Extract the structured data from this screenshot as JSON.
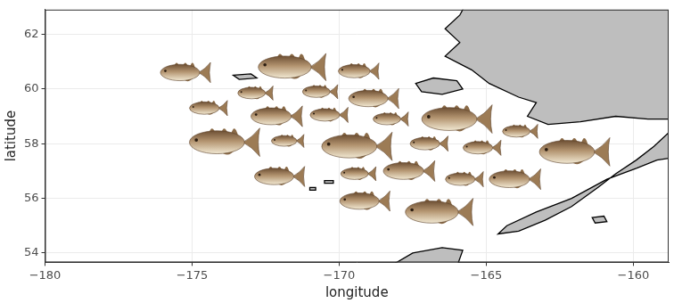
{
  "chart_data": {
    "type": "scatter",
    "x_label": "longitude",
    "y_label": "latitude",
    "marker": "fish",
    "x": [
      -175.3,
      -171.7,
      -169.4,
      -172.9,
      -170.7,
      -168.9,
      -174.5,
      -172.2,
      -170.4,
      -168.3,
      -166.1,
      -174.0,
      -171.8,
      -169.5,
      -167.0,
      -165.2,
      -163.9,
      -162.1,
      -172.1,
      -169.4,
      -167.7,
      -165.8,
      -164.1,
      -169.2,
      -166.7
    ],
    "values": [
      60.6,
      60.8,
      60.65,
      59.85,
      59.9,
      59.65,
      59.3,
      59.0,
      59.05,
      58.9,
      58.9,
      58.05,
      58.1,
      57.9,
      58.0,
      57.85,
      58.45,
      57.7,
      56.8,
      56.9,
      57.0,
      56.7,
      56.7,
      55.9,
      55.5
    ],
    "sizes": [
      1.85,
      2.5,
      1.5,
      1.3,
      1.3,
      1.85,
      1.4,
      1.9,
      1.4,
      1.3,
      2.6,
      2.6,
      1.2,
      2.6,
      1.4,
      1.4,
      1.3,
      2.6,
      1.85,
      1.3,
      1.9,
      1.4,
      1.9,
      1.85,
      2.5
    ],
    "land": [
      [
        [
          -165.8,
          63.5
        ],
        [
          -165.8,
          62.9
        ],
        [
          -165.9,
          62.7
        ],
        [
          -166.4,
          62.2
        ],
        [
          -165.9,
          61.7
        ],
        [
          -166.4,
          61.2
        ],
        [
          -165.5,
          60.7
        ],
        [
          -164.9,
          60.2
        ],
        [
          -163.9,
          59.7
        ],
        [
          -163.3,
          59.5
        ],
        [
          -163.6,
          59.0
        ],
        [
          -162.9,
          58.7
        ],
        [
          -161.8,
          58.8
        ],
        [
          -160.6,
          59.0
        ],
        [
          -159.5,
          58.9
        ],
        [
          -158.0,
          58.9
        ],
        [
          -158.0,
          63.5
        ]
      ],
      [
        [
          -158.0,
          58.4
        ],
        [
          -158.8,
          58.4
        ],
        [
          -159.3,
          57.9
        ],
        [
          -159.9,
          57.4
        ],
        [
          -160.6,
          56.9
        ],
        [
          -161.2,
          56.4
        ],
        [
          -162.1,
          55.7
        ],
        [
          -163.0,
          55.2
        ],
        [
          -163.9,
          54.8
        ],
        [
          -164.6,
          54.7
        ],
        [
          -164.3,
          55.0
        ],
        [
          -163.3,
          55.5
        ],
        [
          -162.1,
          56.0
        ],
        [
          -160.9,
          56.7
        ],
        [
          -159.9,
          57.1
        ],
        [
          -159.2,
          57.4
        ],
        [
          -158.0,
          57.6
        ]
      ],
      [
        [
          -167.4,
          60.2
        ],
        [
          -166.8,
          60.4
        ],
        [
          -166.0,
          60.3
        ],
        [
          -165.8,
          60.0
        ],
        [
          -166.5,
          59.8
        ],
        [
          -167.2,
          59.9
        ]
      ],
      [
        [
          -173.6,
          60.5
        ],
        [
          -173.0,
          60.55
        ],
        [
          -172.8,
          60.4
        ],
        [
          -173.4,
          60.35
        ]
      ],
      [
        [
          -170.5,
          56.65
        ],
        [
          -170.2,
          56.65
        ],
        [
          -170.2,
          56.55
        ],
        [
          -170.5,
          56.55
        ]
      ],
      [
        [
          -171.0,
          56.4
        ],
        [
          -170.8,
          56.4
        ],
        [
          -170.8,
          56.3
        ],
        [
          -171.0,
          56.3
        ]
      ],
      [
        [
          -168.3,
          53.5
        ],
        [
          -167.5,
          54.0
        ],
        [
          -166.5,
          54.2
        ],
        [
          -165.8,
          54.1
        ],
        [
          -166.0,
          53.5
        ]
      ],
      [
        [
          -161.4,
          55.3
        ],
        [
          -161.0,
          55.35
        ],
        [
          -160.9,
          55.15
        ],
        [
          -161.3,
          55.1
        ]
      ]
    ],
    "xlim": [
      -180,
      -158.8
    ],
    "ylim": [
      53.66,
      62.9
    ],
    "xticks": [
      {
        "value": -180,
        "label": "−180"
      },
      {
        "value": -175,
        "label": "−175"
      },
      {
        "value": -170,
        "label": "−170"
      },
      {
        "value": -165,
        "label": "−165"
      },
      {
        "value": -160,
        "label": "−160"
      }
    ],
    "yticks": [
      54,
      56,
      58,
      60,
      62
    ],
    "grid": true
  }
}
